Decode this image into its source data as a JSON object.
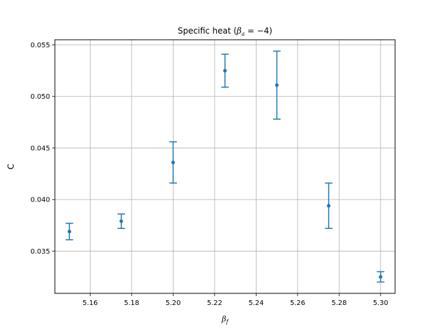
{
  "chart_data": {
    "type": "scatter",
    "title_main": "Specific heat (",
    "title_math": "β",
    "title_sub": "a",
    "title_rest": " = −4)",
    "xlabel_math": "β",
    "xlabel_sub": "f",
    "ylabel": "C",
    "xlim": [
      5.143,
      5.307
    ],
    "ylim": [
      0.0309,
      0.0555
    ],
    "grid": true,
    "color": "#1f77b4",
    "x_ticks": [
      5.16,
      5.18,
      5.2,
      5.22,
      5.24,
      5.26,
      5.28,
      5.3
    ],
    "x_tick_labels": [
      "5.16",
      "5.18",
      "5.20",
      "5.22",
      "5.24",
      "5.26",
      "5.28",
      "5.30"
    ],
    "y_ticks": [
      0.035,
      0.04,
      0.045,
      0.05,
      0.055
    ],
    "y_tick_labels": [
      "0.035",
      "0.040",
      "0.045",
      "0.050",
      "0.055"
    ],
    "series": [
      {
        "x": [
          5.15,
          5.175,
          5.2,
          5.225,
          5.25,
          5.275,
          5.3
        ],
        "y": [
          0.0369,
          0.0379,
          0.0436,
          0.0525,
          0.0511,
          0.0394,
          0.0325
        ],
        "yerr": [
          0.0008,
          0.0007,
          0.002,
          0.0016,
          0.0033,
          0.0022,
          0.0005
        ]
      }
    ]
  }
}
